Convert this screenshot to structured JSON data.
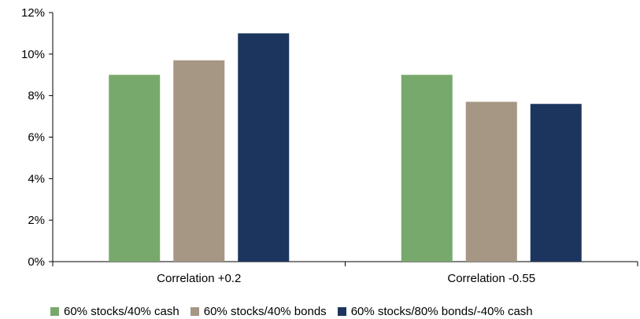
{
  "chart_data": {
    "type": "bar",
    "categories": [
      "Correlation +0.2",
      "Correlation -0.55"
    ],
    "series": [
      {
        "name": "60% stocks/40% cash",
        "values": [
          9.0,
          9.0
        ],
        "color": "#78a96c"
      },
      {
        "name": "60% stocks/40% bonds",
        "values": [
          9.7,
          7.7
        ],
        "color": "#a69684"
      },
      {
        "name": "60% stocks/80% bonds/-40% cash",
        "values": [
          11.0,
          7.6
        ],
        "color": "#1c355e"
      }
    ],
    "ylim": [
      0,
      12
    ],
    "yticks": [
      0,
      2,
      4,
      6,
      8,
      10,
      12
    ],
    "ytick_labels": [
      "0%",
      "2%",
      "4%",
      "6%",
      "8%",
      "10%",
      "12%"
    ],
    "grid": false,
    "legend_position": "bottom"
  }
}
